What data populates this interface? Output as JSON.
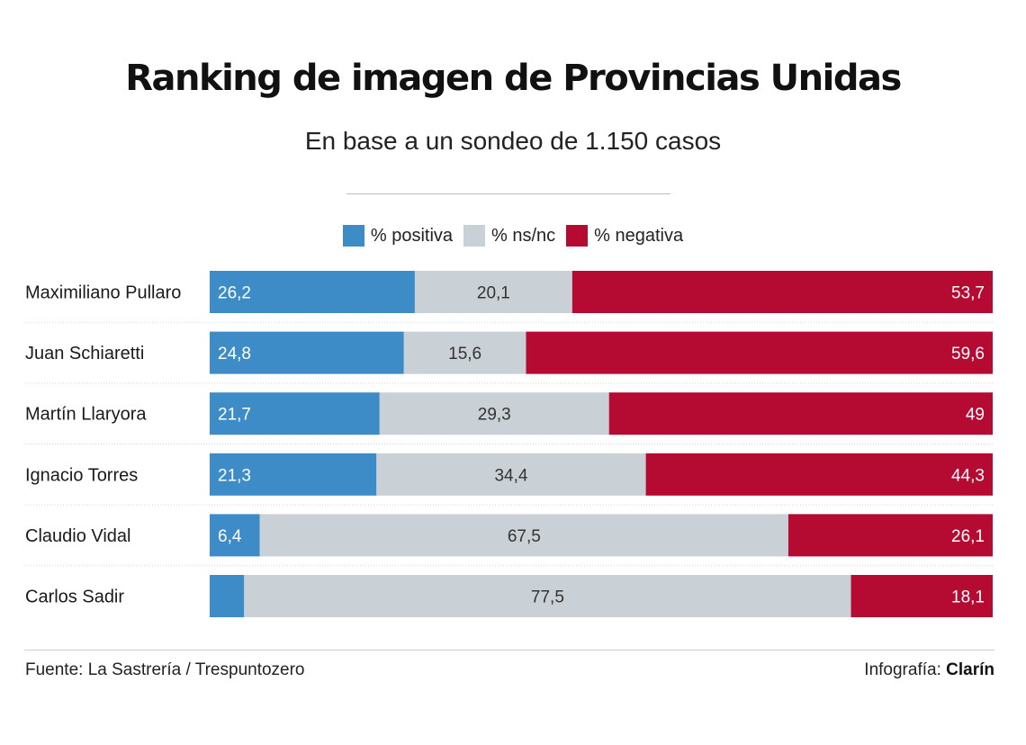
{
  "header": {
    "title": "Ranking de imagen de Provincias Unidas",
    "subtitle": "En base a un sondeo de 1.150 casos"
  },
  "footer": {
    "source": "Fuente: La Sastrería / Trespuntozero",
    "credit_prefix": "Infografía:",
    "credit_brand": "Clarín"
  },
  "colors": {
    "positiva": "#3d8cc8",
    "nsnc": "#c9d0d6",
    "negativa": "#b50a32"
  },
  "chart_data": {
    "type": "bar",
    "orientation": "horizontal",
    "stacked": true,
    "stacked_percent": true,
    "xlim": [
      0,
      100
    ],
    "legend_position": "top-center",
    "grid": false,
    "categories": [
      "Maximiliano Pullaro",
      "Juan Schiaretti",
      "Martín Llaryora",
      "Ignacio Torres",
      "Claudio Vidal",
      "Carlos Sadir"
    ],
    "series": [
      {
        "name": "% positiva",
        "values": [
          26.2,
          24.8,
          21.7,
          21.3,
          6.4,
          4.4
        ],
        "labels": [
          "26,2",
          "24,8",
          "21,7",
          "21,3",
          "6,4",
          ""
        ]
      },
      {
        "name": "% ns/nc",
        "values": [
          20.1,
          15.6,
          29.3,
          34.4,
          67.5,
          77.5
        ],
        "labels": [
          "20,1",
          "15,6",
          "29,3",
          "34,4",
          "67,5",
          "77,5"
        ]
      },
      {
        "name": "% negativa",
        "values": [
          53.7,
          59.6,
          49,
          44.3,
          26.1,
          18.1
        ],
        "labels": [
          "53,7",
          "59,6",
          "49",
          "44,3",
          "26,1",
          "18,1"
        ]
      }
    ]
  }
}
